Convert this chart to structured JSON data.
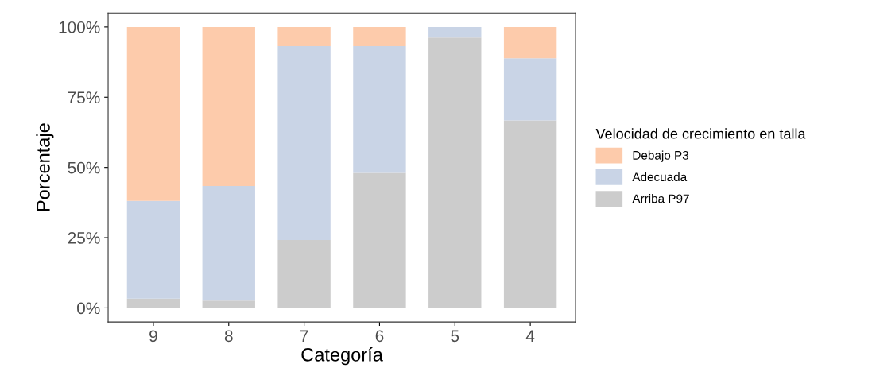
{
  "chart_data": {
    "type": "bar",
    "stacked": true,
    "xlabel": "Categoría",
    "ylabel": "Porcentaje",
    "legend_title": "Velocidad de crecimiento en talla",
    "legend": "right",
    "categories": [
      "9",
      "8",
      "7",
      "6",
      "5",
      "4"
    ],
    "ylim": [
      -5,
      105
    ],
    "yticks": [
      {
        "value": 0,
        "label": "0%"
      },
      {
        "value": 25,
        "label": "25%"
      },
      {
        "value": 50,
        "label": "50%"
      },
      {
        "value": 75,
        "label": "75%"
      },
      {
        "value": 100,
        "label": "100%"
      }
    ],
    "series": [
      {
        "name": "Arriba P97",
        "color": "#cccccc",
        "values": [
          3.3,
          2.6,
          24.2,
          48.1,
          96.2,
          66.7
        ]
      },
      {
        "name": "Adecuada",
        "color": "#c9d4e6",
        "values": [
          34.8,
          40.8,
          69.0,
          45.1,
          3.8,
          22.2
        ]
      },
      {
        "name": "Debajo P3",
        "color": "#fdcbab",
        "values": [
          61.9,
          56.6,
          6.8,
          6.8,
          0,
          11.1
        ]
      }
    ]
  }
}
